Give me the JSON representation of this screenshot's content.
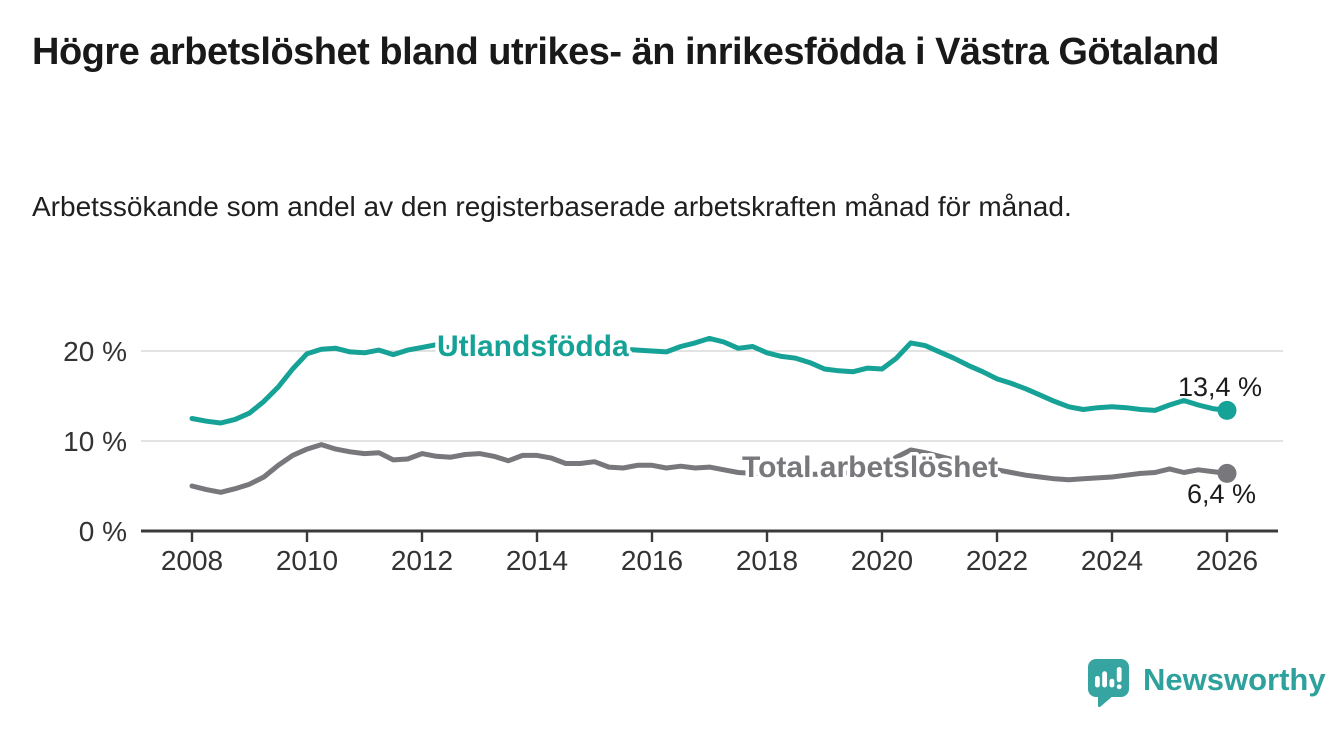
{
  "header": {
    "title": "Högre arbetslöshet bland utrikes- än inrikesfödda i Västra Götaland",
    "subtitle": "Arbetssökande som andel av den registerbaserade arbetskraften månad för månad."
  },
  "chart_data": {
    "type": "line",
    "title": "Högre arbetslöshet bland utrikes- än inrikesfödda i Västra Götaland",
    "subtitle": "Arbetssökande som andel av den registerbaserade arbetskraften månad för månad.",
    "xlabel": "",
    "ylabel": "",
    "unit": "%",
    "xlim": [
      2007.5,
      2027
    ],
    "ylim": [
      0,
      22
    ],
    "grid": "horizontal",
    "y_gridlines": [
      10,
      20
    ],
    "y_ticks": [
      0,
      10,
      20
    ],
    "y_tick_suffix": " %",
    "x_ticks": [
      2008,
      2010,
      2012,
      2014,
      2016,
      2018,
      2020,
      2022,
      2024,
      2026
    ],
    "legend_position": "inline-labels",
    "series": [
      {
        "name": "Utlandsfödda",
        "color": "#16a296",
        "end_label": "13,4 %",
        "end_value": 13.4,
        "points": [
          [
            2008,
            12.5
          ],
          [
            2008.25,
            12.2
          ],
          [
            2008.5,
            12.0
          ],
          [
            2008.75,
            12.4
          ],
          [
            2009,
            13.1
          ],
          [
            2009.25,
            14.4
          ],
          [
            2009.5,
            16.0
          ],
          [
            2009.75,
            18.0
          ],
          [
            2010,
            19.7
          ],
          [
            2010.25,
            20.2
          ],
          [
            2010.5,
            20.3
          ],
          [
            2010.75,
            19.9
          ],
          [
            2011,
            19.8
          ],
          [
            2011.25,
            20.1
          ],
          [
            2011.5,
            19.6
          ],
          [
            2011.75,
            20.1
          ],
          [
            2012,
            20.4
          ],
          [
            2012.25,
            20.7
          ],
          [
            2012.5,
            20.3
          ],
          [
            2012.75,
            20.2
          ],
          [
            2013,
            20.3
          ],
          [
            2013.25,
            20.5
          ],
          [
            2013.5,
            20.3
          ],
          [
            2013.75,
            20.2
          ],
          [
            2014,
            20.3
          ],
          [
            2014.25,
            20.1
          ],
          [
            2014.5,
            20.2
          ],
          [
            2014.75,
            20.4
          ],
          [
            2015,
            20.2
          ],
          [
            2015.25,
            20.1
          ],
          [
            2015.5,
            20.2
          ],
          [
            2015.75,
            20.1
          ],
          [
            2016,
            20.0
          ],
          [
            2016.25,
            19.9
          ],
          [
            2016.5,
            20.5
          ],
          [
            2016.75,
            20.9
          ],
          [
            2017,
            21.4
          ],
          [
            2017.25,
            21.0
          ],
          [
            2017.5,
            20.3
          ],
          [
            2017.75,
            20.5
          ],
          [
            2018,
            19.8
          ],
          [
            2018.25,
            19.4
          ],
          [
            2018.5,
            19.2
          ],
          [
            2018.75,
            18.7
          ],
          [
            2019,
            18.0
          ],
          [
            2019.25,
            17.8
          ],
          [
            2019.5,
            17.7
          ],
          [
            2019.75,
            18.1
          ],
          [
            2020,
            18.0
          ],
          [
            2020.25,
            19.2
          ],
          [
            2020.5,
            20.9
          ],
          [
            2020.75,
            20.6
          ],
          [
            2021,
            19.9
          ],
          [
            2021.25,
            19.2
          ],
          [
            2021.5,
            18.4
          ],
          [
            2021.75,
            17.7
          ],
          [
            2022,
            16.9
          ],
          [
            2022.25,
            16.4
          ],
          [
            2022.5,
            15.8
          ],
          [
            2022.75,
            15.1
          ],
          [
            2023,
            14.4
          ],
          [
            2023.25,
            13.8
          ],
          [
            2023.5,
            13.5
          ],
          [
            2023.75,
            13.7
          ],
          [
            2024,
            13.8
          ],
          [
            2024.25,
            13.7
          ],
          [
            2024.5,
            13.5
          ],
          [
            2024.75,
            13.4
          ],
          [
            2025,
            14.0
          ],
          [
            2025.25,
            14.5
          ],
          [
            2025.5,
            14.0
          ],
          [
            2025.75,
            13.6
          ],
          [
            2026,
            13.4
          ]
        ]
      },
      {
        "name": "Total arbetslöshet",
        "color": "#77777c",
        "end_label": "6,4 %",
        "end_value": 6.4,
        "points": [
          [
            2008,
            5.0
          ],
          [
            2008.25,
            4.6
          ],
          [
            2008.5,
            4.3
          ],
          [
            2008.75,
            4.7
          ],
          [
            2009,
            5.2
          ],
          [
            2009.25,
            6.0
          ],
          [
            2009.5,
            7.3
          ],
          [
            2009.75,
            8.4
          ],
          [
            2010,
            9.1
          ],
          [
            2010.25,
            9.6
          ],
          [
            2010.5,
            9.1
          ],
          [
            2010.75,
            8.8
          ],
          [
            2011,
            8.6
          ],
          [
            2011.25,
            8.7
          ],
          [
            2011.5,
            7.9
          ],
          [
            2011.75,
            8.0
          ],
          [
            2012,
            8.6
          ],
          [
            2012.25,
            8.3
          ],
          [
            2012.5,
            8.2
          ],
          [
            2012.75,
            8.5
          ],
          [
            2013,
            8.6
          ],
          [
            2013.25,
            8.3
          ],
          [
            2013.5,
            7.8
          ],
          [
            2013.75,
            8.4
          ],
          [
            2014,
            8.4
          ],
          [
            2014.25,
            8.1
          ],
          [
            2014.5,
            7.5
          ],
          [
            2014.75,
            7.5
          ],
          [
            2015,
            7.7
          ],
          [
            2015.25,
            7.1
          ],
          [
            2015.5,
            7.0
          ],
          [
            2015.75,
            7.3
          ],
          [
            2016,
            7.3
          ],
          [
            2016.25,
            7.0
          ],
          [
            2016.5,
            7.2
          ],
          [
            2016.75,
            7.0
          ],
          [
            2017,
            7.1
          ],
          [
            2017.25,
            6.8
          ],
          [
            2017.5,
            6.5
          ],
          [
            2017.75,
            6.4
          ],
          [
            2018,
            6.4
          ],
          [
            2018.25,
            6.3
          ],
          [
            2018.5,
            6.2
          ],
          [
            2018.75,
            6.3
          ],
          [
            2019,
            6.3
          ],
          [
            2019.25,
            6.4
          ],
          [
            2019.5,
            6.5
          ],
          [
            2019.75,
            6.7
          ],
          [
            2020,
            6.9
          ],
          [
            2020.25,
            8.2
          ],
          [
            2020.5,
            9.0
          ],
          [
            2020.75,
            8.7
          ],
          [
            2021,
            8.3
          ],
          [
            2021.25,
            7.9
          ],
          [
            2021.5,
            7.5
          ],
          [
            2021.75,
            7.1
          ],
          [
            2022,
            6.8
          ],
          [
            2022.25,
            6.5
          ],
          [
            2022.5,
            6.2
          ],
          [
            2022.75,
            6.0
          ],
          [
            2023,
            5.8
          ],
          [
            2023.25,
            5.7
          ],
          [
            2023.5,
            5.8
          ],
          [
            2023.75,
            5.9
          ],
          [
            2024,
            6.0
          ],
          [
            2024.25,
            6.2
          ],
          [
            2024.5,
            6.4
          ],
          [
            2024.75,
            6.5
          ],
          [
            2025,
            6.9
          ],
          [
            2025.25,
            6.5
          ],
          [
            2025.5,
            6.8
          ],
          [
            2025.75,
            6.6
          ],
          [
            2026,
            6.4
          ]
        ]
      }
    ]
  },
  "footer": {
    "brand": "Newsworthy",
    "brand_color": "#2fa19c"
  }
}
